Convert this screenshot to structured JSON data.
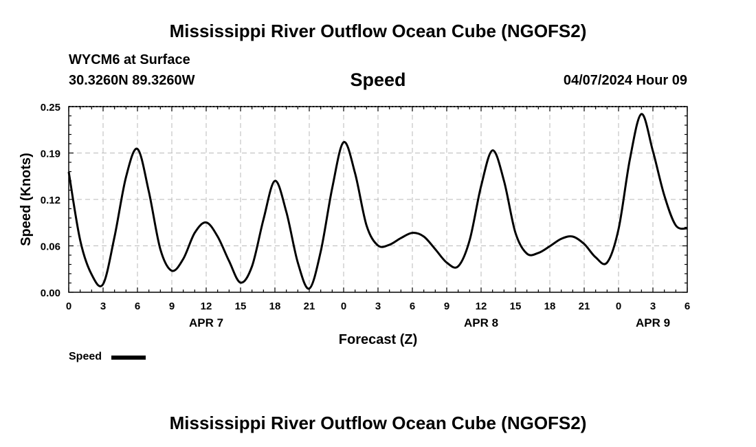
{
  "header": {
    "title": "Mississippi River Outflow Ocean Cube (NGOFS2)",
    "station": "WYCM6 at Surface",
    "coords": "30.3260N  89.3260W",
    "variable": "Speed",
    "datetime": "04/07/2024 Hour 09"
  },
  "legend": {
    "label": "Speed"
  },
  "footer": {
    "title": "Mississippi River Outflow Ocean Cube (NGOFS2)"
  },
  "colors": {
    "line": "#000000",
    "grid": "#b8b8b8",
    "background": "#ffffff"
  },
  "chart_data": {
    "type": "line",
    "title": "Speed",
    "xlabel": "Forecast (Z)",
    "ylabel": "Speed (Knots)",
    "ylim": [
      0,
      0.25
    ],
    "xlim": [
      0,
      54
    ],
    "yticks": [
      "0.00",
      "0.06",
      "0.12",
      "0.19",
      "0.25"
    ],
    "ytick_values": [
      0,
      0.0625,
      0.125,
      0.1875,
      0.25
    ],
    "xtick_labels": [
      "0",
      "3",
      "6",
      "9",
      "12",
      "15",
      "18",
      "21",
      "0",
      "3",
      "6",
      "9",
      "12",
      "15",
      "18",
      "21",
      "0",
      "3",
      "6"
    ],
    "date_labels": [
      {
        "hour": 12,
        "label": "APR 7"
      },
      {
        "hour": 36,
        "label": "APR 8"
      },
      {
        "hour": 51,
        "label": "APR 9"
      }
    ],
    "grid": true,
    "legend_position": "bottom-left",
    "series": [
      {
        "name": "Speed",
        "x": [
          0,
          1,
          2,
          3,
          4,
          5,
          6,
          7,
          8,
          9,
          10,
          11,
          12,
          13,
          14,
          15,
          16,
          17,
          18,
          19,
          20,
          21,
          22,
          23,
          24,
          25,
          26,
          27,
          28,
          29,
          30,
          31,
          32,
          33,
          34,
          35,
          36,
          37,
          38,
          39,
          40,
          41,
          42,
          43,
          44,
          45,
          46,
          47,
          48,
          49,
          50,
          51,
          52,
          53,
          54
        ],
        "y": [
          0.162,
          0.07,
          0.024,
          0.011,
          0.075,
          0.155,
          0.193,
          0.135,
          0.058,
          0.029,
          0.045,
          0.08,
          0.094,
          0.075,
          0.042,
          0.013,
          0.035,
          0.098,
          0.15,
          0.108,
          0.04,
          0.005,
          0.055,
          0.14,
          0.202,
          0.16,
          0.09,
          0.063,
          0.064,
          0.073,
          0.08,
          0.075,
          0.058,
          0.04,
          0.035,
          0.07,
          0.143,
          0.191,
          0.15,
          0.08,
          0.052,
          0.053,
          0.062,
          0.072,
          0.075,
          0.065,
          0.047,
          0.04,
          0.085,
          0.18,
          0.24,
          0.19,
          0.13,
          0.09,
          0.086
        ]
      }
    ]
  }
}
